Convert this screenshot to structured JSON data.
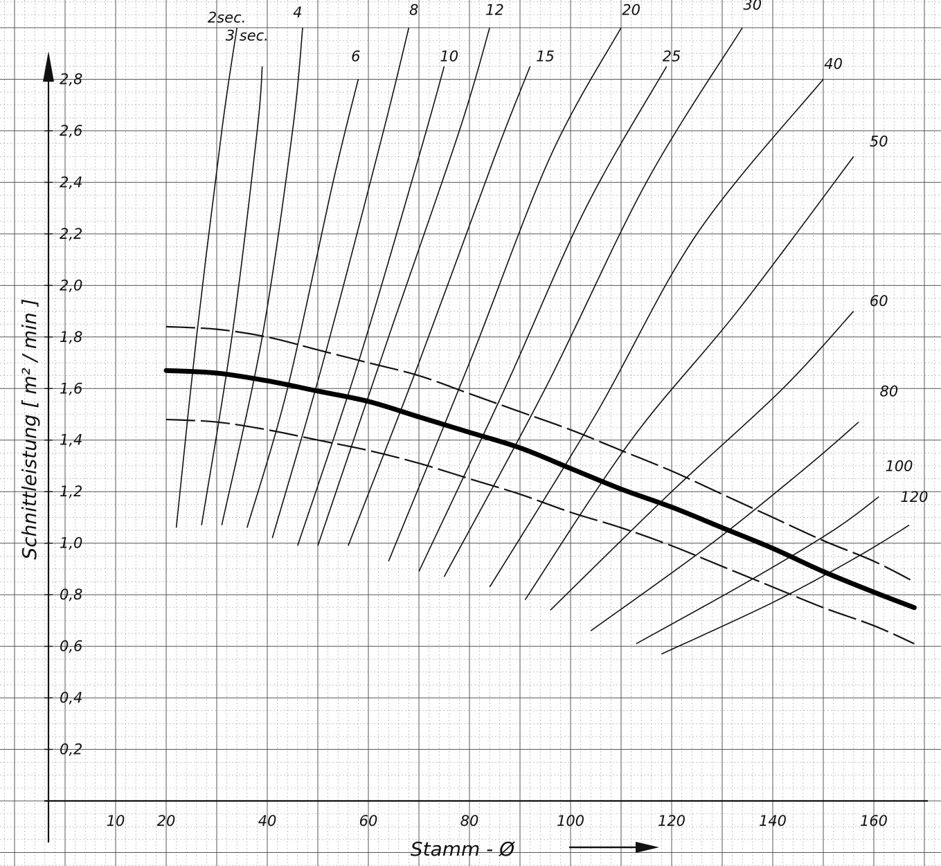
{
  "chart_data": {
    "type": "line",
    "title": "",
    "xlabel": "Stamm - Ø",
    "ylabel": "Schnittleistung [ m² / min ]",
    "xlim": [
      0,
      170
    ],
    "ylim": [
      0,
      3.0
    ],
    "grid": true,
    "x_ticks": [
      "10",
      "20",
      "40",
      "60",
      "80",
      "100",
      "120",
      "140",
      "160"
    ],
    "x_tick_values": [
      10,
      20,
      40,
      60,
      80,
      100,
      120,
      140,
      160
    ],
    "y_ticks": [
      "0,2",
      "0,4",
      "0,6",
      "0,8",
      "1,0",
      "1,2",
      "1,4",
      "1,6",
      "1,8",
      "2,0",
      "2,2",
      "2,4",
      "2,6",
      "2,8"
    ],
    "y_tick_values": [
      0.2,
      0.4,
      0.6,
      0.8,
      1.0,
      1.2,
      1.4,
      1.6,
      1.8,
      2.0,
      2.2,
      2.4,
      2.6,
      2.8
    ],
    "main_curve": {
      "style": "bold",
      "points": [
        [
          20,
          1.67
        ],
        [
          30,
          1.66
        ],
        [
          40,
          1.63
        ],
        [
          50,
          1.59
        ],
        [
          60,
          1.55
        ],
        [
          70,
          1.49
        ],
        [
          80,
          1.43
        ],
        [
          90,
          1.37
        ],
        [
          100,
          1.29
        ],
        [
          110,
          1.21
        ],
        [
          120,
          1.14
        ],
        [
          130,
          1.06
        ],
        [
          140,
          0.98
        ],
        [
          150,
          0.89
        ],
        [
          160,
          0.81
        ],
        [
          168,
          0.75
        ]
      ]
    },
    "band_curves": [
      {
        "style": "dashed",
        "points": [
          [
            20,
            1.84
          ],
          [
            30,
            1.83
          ],
          [
            40,
            1.8
          ],
          [
            50,
            1.75
          ],
          [
            60,
            1.7
          ],
          [
            70,
            1.65
          ],
          [
            80,
            1.58
          ],
          [
            90,
            1.51
          ],
          [
            100,
            1.44
          ],
          [
            110,
            1.36
          ],
          [
            120,
            1.28
          ],
          [
            130,
            1.19
          ],
          [
            140,
            1.1
          ],
          [
            150,
            1.01
          ],
          [
            160,
            0.93
          ],
          [
            168,
            0.85
          ]
        ]
      },
      {
        "style": "dashed",
        "points": [
          [
            20,
            1.48
          ],
          [
            30,
            1.47
          ],
          [
            40,
            1.44
          ],
          [
            50,
            1.4
          ],
          [
            60,
            1.36
          ],
          [
            70,
            1.31
          ],
          [
            80,
            1.25
          ],
          [
            90,
            1.19
          ],
          [
            100,
            1.12
          ],
          [
            110,
            1.06
          ],
          [
            120,
            0.99
          ],
          [
            130,
            0.91
          ],
          [
            140,
            0.83
          ],
          [
            150,
            0.75
          ],
          [
            160,
            0.68
          ],
          [
            168,
            0.61
          ]
        ]
      }
    ],
    "time_curves": [
      {
        "label": "2sec.",
        "points": [
          [
            22,
            1.06
          ],
          [
            26,
            1.8
          ],
          [
            31,
            2.6
          ],
          [
            34,
            3.0
          ]
        ],
        "label_pos": [
          32,
          3.02
        ]
      },
      {
        "label": "3 sec.",
        "points": [
          [
            27,
            1.07
          ],
          [
            33,
            1.8
          ],
          [
            38,
            2.6
          ],
          [
            39,
            2.85
          ]
        ],
        "label_pos": [
          36,
          2.95
        ]
      },
      {
        "label": "4",
        "points": [
          [
            31,
            1.07
          ],
          [
            39,
            1.8
          ],
          [
            45,
            2.6
          ],
          [
            47,
            3.0
          ]
        ],
        "label_pos": [
          46,
          3.04
        ]
      },
      {
        "label": "6",
        "points": [
          [
            36,
            1.06
          ],
          [
            44,
            1.6
          ],
          [
            53,
            2.4
          ],
          [
            58,
            2.8
          ]
        ],
        "label_pos": [
          57.5,
          2.87
        ]
      },
      {
        "label": "8",
        "points": [
          [
            41,
            1.02
          ],
          [
            51,
            1.7
          ],
          [
            63,
            2.6
          ],
          [
            68,
            3.0
          ]
        ],
        "label_pos": [
          69,
          3.05
        ]
      },
      {
        "label": "10",
        "points": [
          [
            46,
            0.99
          ],
          [
            58,
            1.7
          ],
          [
            70,
            2.5
          ],
          [
            75,
            2.85
          ]
        ],
        "label_pos": [
          76,
          2.87
        ]
      },
      {
        "label": "12",
        "points": [
          [
            50,
            0.99
          ],
          [
            64,
            1.8
          ],
          [
            78,
            2.6
          ],
          [
            84,
            3.0
          ]
        ],
        "label_pos": [
          85,
          3.05
        ]
      },
      {
        "label": "15",
        "points": [
          [
            56,
            0.99
          ],
          [
            70,
            1.7
          ],
          [
            85,
            2.5
          ],
          [
            92,
            2.85
          ]
        ],
        "label_pos": [
          95,
          2.87
        ]
      },
      {
        "label": "20",
        "points": [
          [
            64,
            0.93
          ],
          [
            80,
            1.7
          ],
          [
            96,
            2.5
          ],
          [
            110,
            3.0
          ]
        ],
        "label_pos": [
          112,
          3.05
        ]
      },
      {
        "label": "25",
        "points": [
          [
            70,
            0.89
          ],
          [
            87,
            1.6
          ],
          [
            103,
            2.3
          ],
          [
            119,
            2.85
          ]
        ],
        "label_pos": [
          120,
          2.87
        ]
      },
      {
        "label": "30",
        "points": [
          [
            75,
            0.87
          ],
          [
            95,
            1.6
          ],
          [
            115,
            2.4
          ],
          [
            134,
            3.0
          ]
        ],
        "label_pos": [
          136,
          3.07
        ]
      },
      {
        "label": "40",
        "points": [
          [
            84,
            0.83
          ],
          [
            105,
            1.5
          ],
          [
            125,
            2.2
          ],
          [
            150,
            2.8
          ]
        ],
        "label_pos": [
          152,
          2.84
        ]
      },
      {
        "label": "50",
        "points": [
          [
            91,
            0.78
          ],
          [
            112,
            1.4
          ],
          [
            133,
            1.9
          ],
          [
            156,
            2.5
          ]
        ],
        "label_pos": [
          161,
          2.54
        ]
      },
      {
        "label": "60",
        "points": [
          [
            96,
            0.74
          ],
          [
            120,
            1.2
          ],
          [
            142,
            1.6
          ],
          [
            156,
            1.9
          ]
        ],
        "label_pos": [
          161,
          1.92
        ]
      },
      {
        "label": "80",
        "points": [
          [
            104,
            0.66
          ],
          [
            128,
            1.0
          ],
          [
            147,
            1.3
          ],
          [
            157,
            1.47
          ]
        ],
        "label_pos": [
          163,
          1.57
        ]
      },
      {
        "label": "100",
        "points": [
          [
            113,
            0.61
          ],
          [
            135,
            0.85
          ],
          [
            152,
            1.05
          ],
          [
            161,
            1.18
          ]
        ],
        "label_pos": [
          165,
          1.28
        ]
      },
      {
        "label": "120",
        "points": [
          [
            118,
            0.57
          ],
          [
            140,
            0.77
          ],
          [
            157,
            0.95
          ],
          [
            167,
            1.07
          ]
        ],
        "label_pos": [
          168,
          1.16
        ]
      }
    ]
  }
}
